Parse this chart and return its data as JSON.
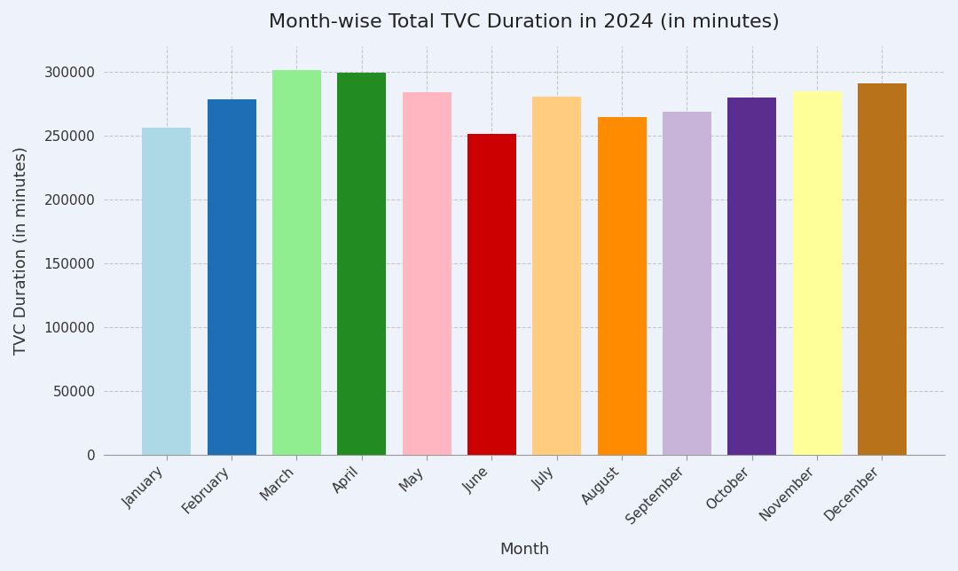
{
  "title": "Month-wise Total TVC Duration in 2024 (in minutes)",
  "xlabel": "Month",
  "ylabel": "TVC Duration (in minutes)",
  "categories": [
    "January",
    "February",
    "March",
    "April",
    "May",
    "June",
    "July",
    "August",
    "September",
    "October",
    "November",
    "December"
  ],
  "values": [
    256000,
    278000,
    301500,
    299000,
    284000,
    251000,
    280500,
    264500,
    268500,
    280000,
    284500,
    291000
  ],
  "bar_colors": [
    "#ADD8E6",
    "#1E6EB5",
    "#90EE90",
    "#228B22",
    "#FFB6C1",
    "#CC0000",
    "#FFCC80",
    "#FF8C00",
    "#C8B4D8",
    "#5B2D8E",
    "#FFFF99",
    "#B8721A"
  ],
  "ylim": [
    0,
    320000
  ],
  "yticks": [
    0,
    50000,
    100000,
    150000,
    200000,
    250000,
    300000
  ],
  "background_color": "#EEF2FA",
  "grid_color": "#BBBBBB",
  "title_fontsize": 16,
  "axis_fontsize": 13,
  "tick_fontsize": 11,
  "bar_width": 0.75
}
